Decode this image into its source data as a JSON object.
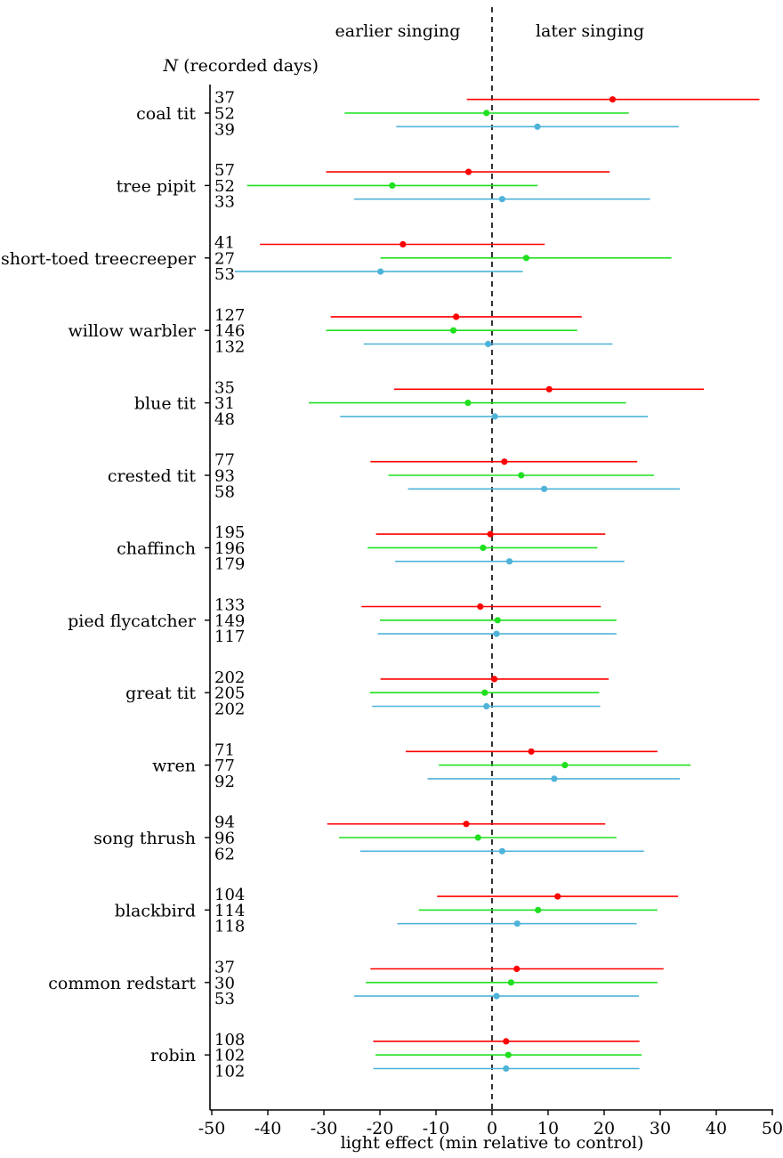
{
  "chart_data": {
    "type": "forest",
    "title": "",
    "header_left": "earlier singing",
    "header_right": "later singing",
    "n_label_italic": "N",
    "n_label_rest": " (recorded days)",
    "xlabel": "light effect (min relative to control)",
    "ylabel": "",
    "xlim": [
      -50,
      50
    ],
    "xticks": [
      -50,
      -40,
      -30,
      -20,
      -10,
      0,
      10,
      20,
      30,
      40,
      50
    ],
    "reference_line": 0,
    "grid": false,
    "series_colors": [
      "#ff0000",
      "#1fe01f",
      "#4fb3d9"
    ],
    "species": [
      {
        "name": "coal tit",
        "n": [
          "37",
          "52",
          "39"
        ],
        "points": [
          {
            "est": 21.5,
            "lo": -4.5,
            "hi": 47.7
          },
          {
            "est": -1.0,
            "lo": -26.3,
            "hi": 24.4
          },
          {
            "est": 8.1,
            "lo": -17.1,
            "hi": 33.3
          }
        ]
      },
      {
        "name": "tree pipit",
        "n": [
          "57",
          "52",
          "33"
        ],
        "points": [
          {
            "est": -4.2,
            "lo": -29.6,
            "hi": 21.0
          },
          {
            "est": -17.8,
            "lo": -43.7,
            "hi": 8.1
          },
          {
            "est": 1.8,
            "lo": -24.6,
            "hi": 28.2
          }
        ]
      },
      {
        "name": "short-toed treecreeper",
        "n": [
          "41",
          "27",
          "53"
        ],
        "points": [
          {
            "est": -15.9,
            "lo": -41.4,
            "hi": 9.4
          },
          {
            "est": 6.1,
            "lo": -19.9,
            "hi": 32.0
          },
          {
            "est": -19.9,
            "lo": -45.9,
            "hi": 5.5
          }
        ]
      },
      {
        "name": "willow warbler",
        "n": [
          "127",
          "146",
          "132"
        ],
        "points": [
          {
            "est": -6.4,
            "lo": -28.8,
            "hi": 16.0
          },
          {
            "est": -6.9,
            "lo": -29.6,
            "hi": 15.2
          },
          {
            "est": -0.7,
            "lo": -22.9,
            "hi": 21.5
          }
        ]
      },
      {
        "name": "blue tit",
        "n": [
          "35",
          "31",
          "48"
        ],
        "points": [
          {
            "est": 10.2,
            "lo": -17.5,
            "hi": 37.8
          },
          {
            "est": -4.3,
            "lo": -32.7,
            "hi": 23.9
          },
          {
            "est": 0.5,
            "lo": -27.1,
            "hi": 27.8
          }
        ]
      },
      {
        "name": "crested tit",
        "n": [
          "77",
          "93",
          "58"
        ],
        "points": [
          {
            "est": 2.2,
            "lo": -21.7,
            "hi": 25.9
          },
          {
            "est": 5.2,
            "lo": -18.5,
            "hi": 28.9
          },
          {
            "est": 9.3,
            "lo": -15.0,
            "hi": 33.5
          }
        ]
      },
      {
        "name": "chaffinch",
        "n": [
          "195",
          "196",
          "179"
        ],
        "points": [
          {
            "est": -0.3,
            "lo": -20.7,
            "hi": 20.2
          },
          {
            "est": -1.6,
            "lo": -22.2,
            "hi": 18.8
          },
          {
            "est": 3.1,
            "lo": -17.3,
            "hi": 23.6
          }
        ]
      },
      {
        "name": "pied flycatcher",
        "n": [
          "133",
          "149",
          "117"
        ],
        "points": [
          {
            "est": -2.1,
            "lo": -23.3,
            "hi": 19.4
          },
          {
            "est": 1.0,
            "lo": -20.0,
            "hi": 22.2
          },
          {
            "est": 0.8,
            "lo": -20.4,
            "hi": 22.2
          }
        ]
      },
      {
        "name": "great tit",
        "n": [
          "202",
          "205",
          "202"
        ],
        "points": [
          {
            "est": 0.4,
            "lo": -19.9,
            "hi": 20.8
          },
          {
            "est": -1.3,
            "lo": -21.8,
            "hi": 19.1
          },
          {
            "est": -1.0,
            "lo": -21.4,
            "hi": 19.3
          }
        ]
      },
      {
        "name": "wren",
        "n": [
          "71",
          "77",
          "92"
        ],
        "points": [
          {
            "est": 7.0,
            "lo": -15.4,
            "hi": 29.5
          },
          {
            "est": 13.0,
            "lo": -9.5,
            "hi": 35.4
          },
          {
            "est": 11.1,
            "lo": -11.5,
            "hi": 33.5
          }
        ]
      },
      {
        "name": "song thrush",
        "n": [
          "94",
          "96",
          "62"
        ],
        "points": [
          {
            "est": -4.6,
            "lo": -29.4,
            "hi": 20.2
          },
          {
            "est": -2.5,
            "lo": -27.3,
            "hi": 22.2
          },
          {
            "est": 1.8,
            "lo": -23.5,
            "hi": 27.1
          }
        ]
      },
      {
        "name": "blackbird",
        "n": [
          "104",
          "114",
          "118"
        ],
        "points": [
          {
            "est": 11.7,
            "lo": -9.8,
            "hi": 33.2
          },
          {
            "est": 8.2,
            "lo": -13.1,
            "hi": 29.5
          },
          {
            "est": 4.5,
            "lo": -16.9,
            "hi": 25.8
          }
        ]
      },
      {
        "name": "common redstart",
        "n": [
          "37",
          "30",
          "53"
        ],
        "points": [
          {
            "est": 4.4,
            "lo": -21.7,
            "hi": 30.6
          },
          {
            "est": 3.4,
            "lo": -22.5,
            "hi": 29.5
          },
          {
            "est": 0.8,
            "lo": -24.6,
            "hi": 26.2
          }
        ]
      },
      {
        "name": "robin",
        "n": [
          "108",
          "102",
          "102"
        ],
        "points": [
          {
            "est": 2.5,
            "lo": -21.2,
            "hi": 26.3
          },
          {
            "est": 2.9,
            "lo": -20.8,
            "hi": 26.7
          },
          {
            "est": 2.5,
            "lo": -21.2,
            "hi": 26.3
          }
        ]
      }
    ]
  }
}
